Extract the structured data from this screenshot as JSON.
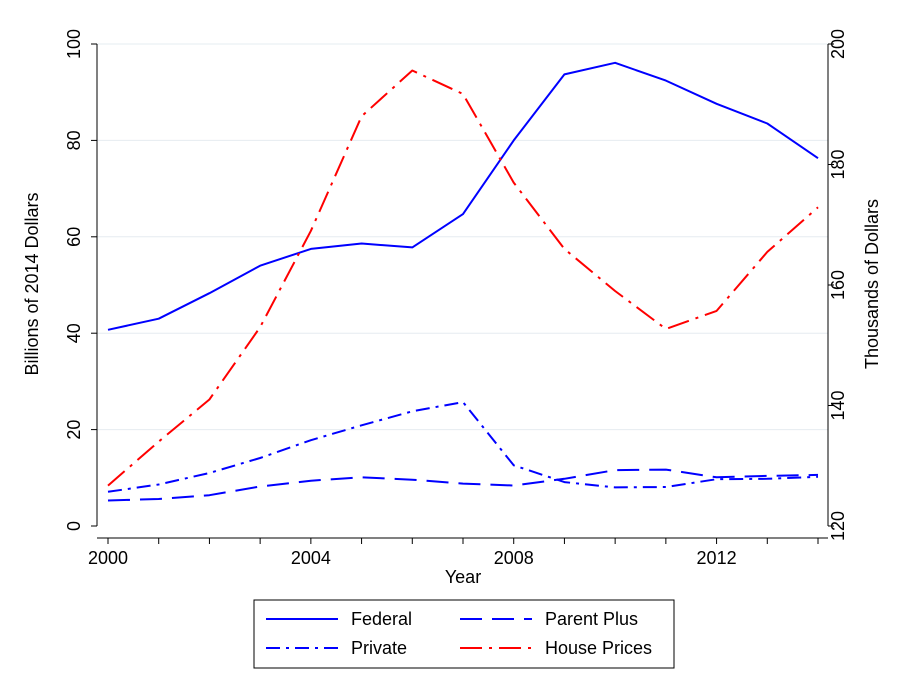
{
  "chart_data": {
    "type": "line",
    "xlabel": "Year",
    "ylabel_left": "Billions of 2014 Dollars",
    "ylabel_right": "Thousands of Dollars",
    "xlim": [
      2000,
      2014
    ],
    "ylim_left": [
      0,
      100
    ],
    "ylim_right": [
      120,
      200
    ],
    "x_ticks": [
      2000,
      2004,
      2008,
      2012
    ],
    "y_ticks_left": [
      0,
      20,
      40,
      60,
      80,
      100
    ],
    "y_ticks_right": [
      120,
      140,
      160,
      180,
      200
    ],
    "grid": "horizontal",
    "legend_position": "bottom",
    "x": [
      2000,
      2001,
      2002,
      2003,
      2004,
      2005,
      2006,
      2007,
      2008,
      2009,
      2010,
      2011,
      2012,
      2013,
      2014
    ],
    "series": [
      {
        "name": "Federal",
        "axis": "left",
        "color": "#0000ff",
        "dash": "solid",
        "values": [
          40.7,
          43.0,
          48.3,
          54.0,
          57.5,
          58.6,
          57.8,
          64.7,
          80.0,
          93.7,
          96.1,
          92.4,
          87.6,
          83.5,
          76.3
        ]
      },
      {
        "name": "Parent Plus",
        "axis": "left",
        "color": "#0000ff",
        "dash": "long-dash",
        "values": [
          5.3,
          5.6,
          6.4,
          8.2,
          9.4,
          10.1,
          9.6,
          8.8,
          8.4,
          9.8,
          11.6,
          11.7,
          10.1,
          10.4,
          10.6
        ]
      },
      {
        "name": "Private",
        "axis": "left",
        "color": "#0000ff",
        "dash": "dash-dot",
        "values": [
          7.1,
          8.6,
          11.0,
          14.1,
          17.8,
          20.9,
          23.8,
          25.7,
          12.6,
          9.1,
          8.0,
          8.1,
          9.7,
          9.8,
          10.2
        ]
      },
      {
        "name": "House Prices",
        "axis": "right",
        "color": "#ff0000",
        "dash": "long-dash-dot",
        "values": [
          126.7,
          134.0,
          141.0,
          153.0,
          169.0,
          188.0,
          195.6,
          191.7,
          177.0,
          166.0,
          159.0,
          152.7,
          155.7,
          165.5,
          172.9
        ]
      }
    ]
  }
}
